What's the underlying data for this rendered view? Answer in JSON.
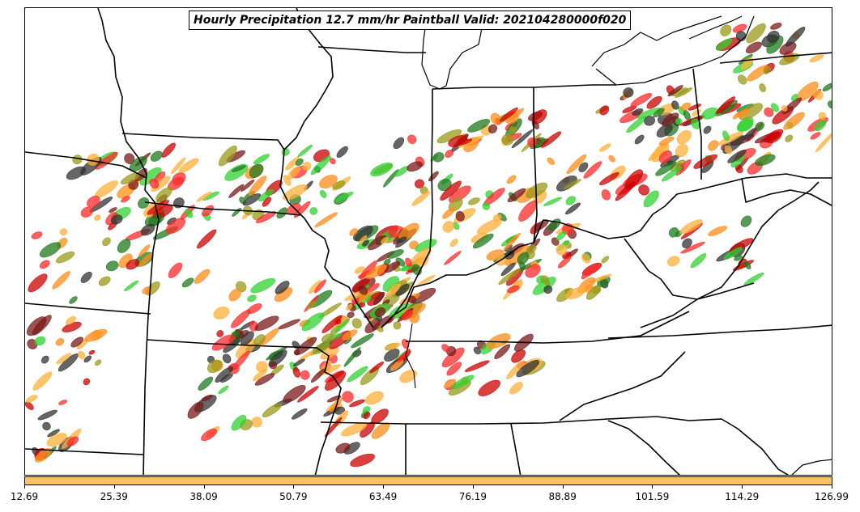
{
  "map": {
    "title": "Hourly Precipitation 12.7 mm/hr Paintball Valid: 202104280000f020",
    "colors": {
      "member_palette": [
        "#ff2a2a",
        "#cc0000",
        "#7a1a1a",
        "#2fd12f",
        "#1f7a1f",
        "#9a9a1a",
        "#ff8c1a",
        "#ffb03a",
        "#333333"
      ],
      "boundary": "#000000",
      "background": "#ffffff"
    }
  },
  "colorbar": {
    "fill_color": "#ffc062",
    "tick_labels": [
      "12.69",
      "25.39",
      "38.09",
      "50.79",
      "63.49",
      "76.19",
      "88.89",
      "101.59",
      "114.29",
      "126.99"
    ]
  }
}
